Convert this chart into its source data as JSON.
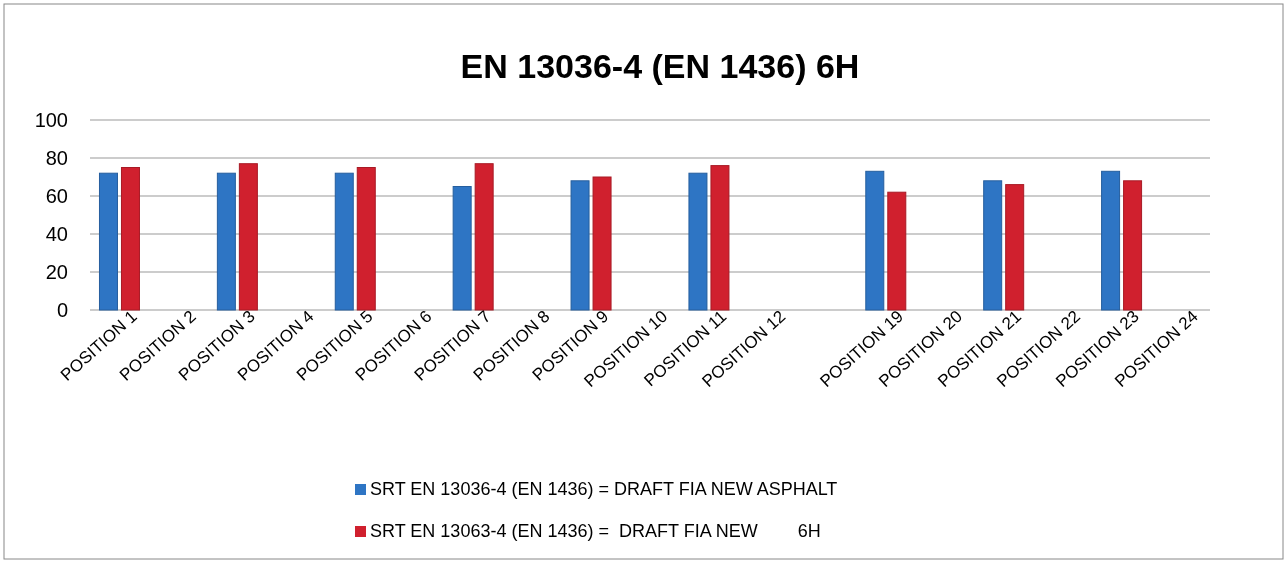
{
  "chart_data": {
    "type": "bar",
    "title": "EN 13036-4 (EN 1436) 6H",
    "categories": [
      "POSITION 1",
      "POSITION 2",
      "POSITION 3",
      "POSITION 4",
      "POSITION 5",
      "POSITION 6",
      "POSITION 7",
      "POSITION 8",
      "POSITION 9",
      "POSITION 10",
      "POSITION 11",
      "POSITION 12",
      null,
      "POSITION 19",
      "POSITION 20",
      "POSITION 21",
      "POSITION 22",
      "POSITION 23",
      "POSITION 24"
    ],
    "series": [
      {
        "name": "SRT EN 13036-4 (EN 1436) = DRAFT FIA NEW ASPHALT",
        "color": "#2e75c4",
        "values": [
          72,
          null,
          72,
          null,
          72,
          null,
          65,
          null,
          68,
          null,
          72,
          null,
          null,
          73,
          null,
          68,
          null,
          73,
          null
        ]
      },
      {
        "name": "SRT EN 13063-4 (EN 1436) =  DRAFT FIA NEW        6H",
        "color": "#d0202e",
        "values": [
          75,
          null,
          77,
          null,
          75,
          null,
          77,
          null,
          70,
          null,
          76,
          null,
          null,
          62,
          null,
          66,
          null,
          68,
          null
        ]
      }
    ],
    "ylim": [
      0,
      100
    ],
    "yticks": [
      0,
      20,
      40,
      60,
      80,
      100
    ],
    "grid": "y",
    "legend": "bottom"
  }
}
